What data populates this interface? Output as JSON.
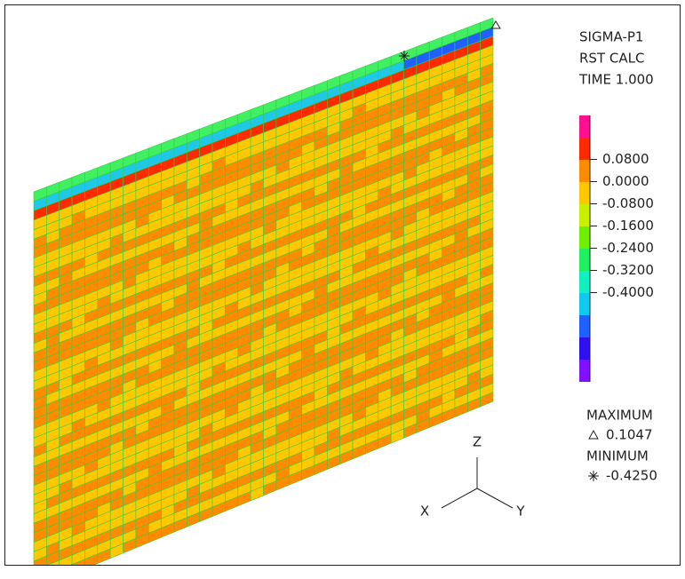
{
  "header": {
    "lines": [
      "SIGMA-P1",
      "RST CALC",
      "TIME 1.000"
    ]
  },
  "legend": {
    "colors": [
      "#ff1090",
      "#ff2a00",
      "#ff8c00",
      "#ffc800",
      "#c8f000",
      "#70f000",
      "#20f060",
      "#10f0c0",
      "#10c8f0",
      "#2060ff",
      "#3010f0",
      "#8010ff"
    ],
    "labels": [
      "0.0800",
      "0.0000",
      "-0.0800",
      "-0.1600",
      "-0.2400",
      "-0.3200",
      "-0.4000"
    ]
  },
  "extremes": {
    "maximum_title": "MAXIMUM",
    "maximum": "0.1047",
    "minimum_title": "MINIMUM",
    "minimum": "-0.4250"
  },
  "axes": {
    "z": "Z",
    "x": "X",
    "y": "Y"
  }
}
